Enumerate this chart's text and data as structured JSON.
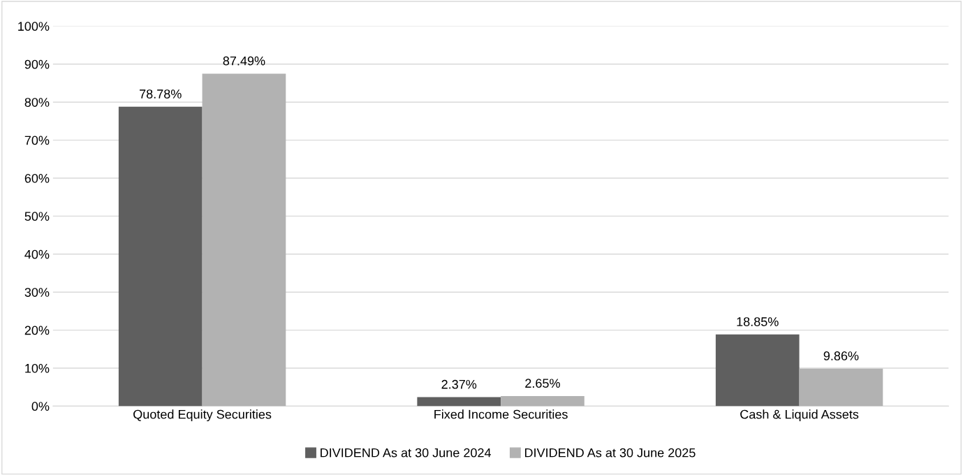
{
  "chart_data": {
    "type": "bar",
    "categories": [
      "Quoted Equity Securities",
      "Fixed Income Securities",
      "Cash & Liquid Assets"
    ],
    "series": [
      {
        "name": "DIVIDEND As at 30 June 2024",
        "color": "#5f5f5f",
        "values": [
          78.78,
          2.37,
          18.85
        ],
        "value_labels": [
          "78.78%",
          "2.37%",
          "18.85%"
        ]
      },
      {
        "name": "DIVIDEND As at 30 June 2025",
        "color": "#b2b2b2",
        "values": [
          87.49,
          2.65,
          9.86
        ],
        "value_labels": [
          "87.49%",
          "2.65%",
          "9.86%"
        ]
      }
    ],
    "ylim": [
      0,
      100
    ],
    "yticks": [
      {
        "value": 0,
        "label": "0%"
      },
      {
        "value": 10,
        "label": "10%"
      },
      {
        "value": 20,
        "label": "20%"
      },
      {
        "value": 30,
        "label": "30%"
      },
      {
        "value": 40,
        "label": "40%"
      },
      {
        "value": 50,
        "label": "50%"
      },
      {
        "value": 60,
        "label": "60%"
      },
      {
        "value": 70,
        "label": "70%"
      },
      {
        "value": 80,
        "label": "80%"
      },
      {
        "value": 90,
        "label": "90%"
      },
      {
        "value": 100,
        "label": "100%"
      }
    ],
    "grid": "y",
    "legend": "bottom"
  }
}
